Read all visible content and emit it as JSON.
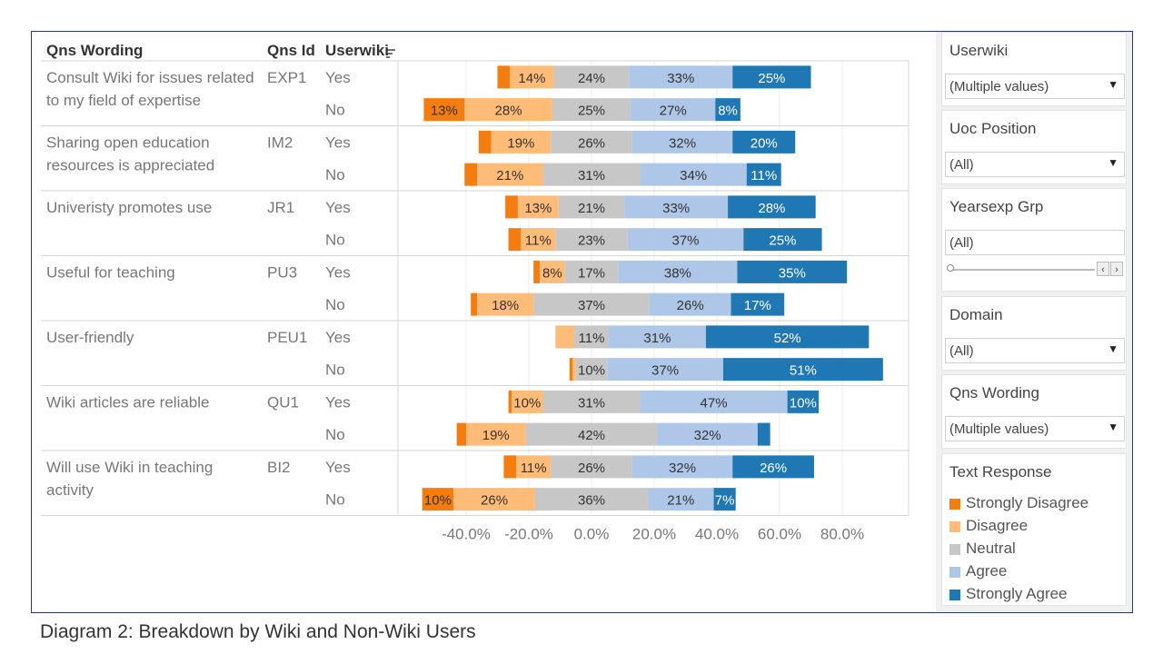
{
  "caption": "Diagram 2: Breakdown by Wiki and Non-Wiki Users",
  "headers": {
    "qns_wording": "Qns Wording",
    "qns_id": "Qns Id",
    "userwiki": "Userwiki"
  },
  "filters": {
    "userwiki": {
      "title": "Userwiki",
      "value": "(Multiple values)"
    },
    "uoc_position": {
      "title": "Uoc Position",
      "value": "(All)"
    },
    "yearsexp_grp": {
      "title": "Yearsexp Grp",
      "value": "(All)"
    },
    "domain": {
      "title": "Domain",
      "value": "(All)"
    },
    "qns_wording": {
      "title": "Qns Wording",
      "value": "(Multiple values)"
    }
  },
  "legend": {
    "title": "Text Response",
    "items": [
      {
        "label": "Strongly Disagree",
        "color": "#f57c0e"
      },
      {
        "label": "Disagree",
        "color": "#ffbb78"
      },
      {
        "label": "Neutral",
        "color": "#c7c7c7"
      },
      {
        "label": "Agree",
        "color": "#aec7e8"
      },
      {
        "label": "Strongly Agree",
        "color": "#1f77b4"
      }
    ]
  },
  "chart_data": {
    "type": "bar",
    "orientation": "horizontal-diverging-stacked",
    "x_ticks": [
      "-40.0%",
      "-20.0%",
      "0.0%",
      "20.0%",
      "40.0%",
      "60.0%",
      "80.0%"
    ],
    "x_tick_values": [
      -40,
      -20,
      0,
      20,
      40,
      60,
      80
    ],
    "xlim": [
      -55,
      95
    ],
    "grid": true,
    "groups": [
      {
        "wording": "Consult Wiki for issues related to my field of expertise",
        "id": "EXP1",
        "rows": [
          {
            "userwiki": "Yes",
            "sd": 4,
            "d": 14,
            "n": 24,
            "a": 33,
            "sa": 25,
            "labels": [
              "",
              "14%",
              "24%",
              "33%",
              "25%"
            ]
          },
          {
            "userwiki": "No",
            "sd": 13,
            "d": 28,
            "n": 25,
            "a": 27,
            "sa": 8,
            "labels": [
              "13%",
              "28%",
              "25%",
              "27%",
              "8%"
            ]
          }
        ]
      },
      {
        "wording": "Sharing open education resources is appreciated",
        "id": "IM2",
        "rows": [
          {
            "userwiki": "Yes",
            "sd": 4,
            "d": 19,
            "n": 26,
            "a": 32,
            "sa": 20,
            "labels": [
              "",
              "19%",
              "26%",
              "32%",
              "20%"
            ]
          },
          {
            "userwiki": "No",
            "sd": 4,
            "d": 21,
            "n": 31,
            "a": 34,
            "sa": 11,
            "labels": [
              "",
              "21%",
              "31%",
              "34%",
              "11%"
            ]
          }
        ]
      },
      {
        "wording": "Univeristy promotes use",
        "id": "JR1",
        "rows": [
          {
            "userwiki": "Yes",
            "sd": 4,
            "d": 13,
            "n": 21,
            "a": 33,
            "sa": 28,
            "labels": [
              "",
              "13%",
              "21%",
              "33%",
              "28%"
            ]
          },
          {
            "userwiki": "No",
            "sd": 4,
            "d": 11,
            "n": 23,
            "a": 37,
            "sa": 25,
            "labels": [
              "",
              "11%",
              "23%",
              "37%",
              "25%"
            ]
          }
        ]
      },
      {
        "wording": "Useful for teaching",
        "id": "PU3",
        "rows": [
          {
            "userwiki": "Yes",
            "sd": 2,
            "d": 8,
            "n": 17,
            "a": 38,
            "sa": 35,
            "labels": [
              "",
              "8%",
              "17%",
              "38%",
              "35%"
            ]
          },
          {
            "userwiki": "No",
            "sd": 2,
            "d": 18,
            "n": 37,
            "a": 26,
            "sa": 17,
            "labels": [
              "",
              "18%",
              "37%",
              "26%",
              "17%"
            ]
          }
        ]
      },
      {
        "wording": "User-friendly",
        "id": "PEU1",
        "rows": [
          {
            "userwiki": "Yes",
            "sd": 0,
            "d": 6,
            "n": 11,
            "a": 31,
            "sa": 52,
            "labels": [
              "",
              "",
              "11%",
              "31%",
              "52%"
            ]
          },
          {
            "userwiki": "No",
            "sd": 1,
            "d": 1,
            "n": 10,
            "a": 37,
            "sa": 51,
            "labels": [
              "",
              "",
              "10%",
              "37%",
              "51%"
            ]
          }
        ]
      },
      {
        "wording": "Wiki articles are reliable",
        "id": "QU1",
        "rows": [
          {
            "userwiki": "Yes",
            "sd": 1,
            "d": 10,
            "n": 31,
            "a": 47,
            "sa": 10,
            "labels": [
              "",
              "10%",
              "31%",
              "47%",
              "10%"
            ]
          },
          {
            "userwiki": "No",
            "sd": 3,
            "d": 19,
            "n": 42,
            "a": 32,
            "sa": 4,
            "labels": [
              "",
              "19%",
              "42%",
              "32%",
              ""
            ]
          }
        ]
      },
      {
        "wording": "Will use Wiki in teaching activity",
        "id": "BI2",
        "rows": [
          {
            "userwiki": "Yes",
            "sd": 4,
            "d": 11,
            "n": 26,
            "a": 32,
            "sa": 26,
            "labels": [
              "",
              "11%",
              "26%",
              "32%",
              "26%"
            ]
          },
          {
            "userwiki": "No",
            "sd": 10,
            "d": 26,
            "n": 36,
            "a": 21,
            "sa": 7,
            "labels": [
              "10%",
              "26%",
              "36%",
              "21%",
              "7%"
            ]
          }
        ]
      }
    ]
  }
}
